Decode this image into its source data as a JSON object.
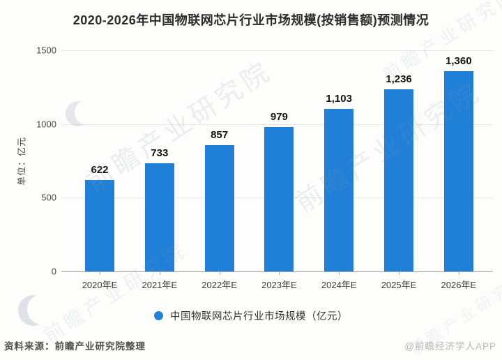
{
  "title": "2020-2026年中国物联网芯片行业市场规模(按销售额)预测情况",
  "chart_data": {
    "type": "bar",
    "categories": [
      "2020年E",
      "2021年E",
      "2022年E",
      "2023年E",
      "2024年E",
      "2025年E",
      "2026年E"
    ],
    "values": [
      622,
      733,
      857,
      979,
      1103,
      1236,
      1360
    ],
    "value_labels": [
      "622",
      "733",
      "857",
      "979",
      "1,103",
      "1,236",
      "1,360"
    ],
    "series_name": "中国物联网芯片行业市场规模（亿元）",
    "title": "2020-2026年中国物联网芯片行业市场规模(按销售额)预测情况",
    "xlabel": "",
    "ylabel": "单位：亿元",
    "ylim": [
      0,
      1500
    ],
    "yticks": [
      0,
      500,
      1000,
      1500
    ],
    "grid": "horizontal",
    "legend_position": "bottom",
    "bar_color": "#2080d8"
  },
  "legend": {
    "entry": "中国物联网芯片行业市场规模（亿元）"
  },
  "footer": {
    "source": "资料来源：前瞻产业研究院整理",
    "credit": "@前瞻经济学人APP"
  },
  "watermark": {
    "text": "前瞻产业研究院"
  }
}
